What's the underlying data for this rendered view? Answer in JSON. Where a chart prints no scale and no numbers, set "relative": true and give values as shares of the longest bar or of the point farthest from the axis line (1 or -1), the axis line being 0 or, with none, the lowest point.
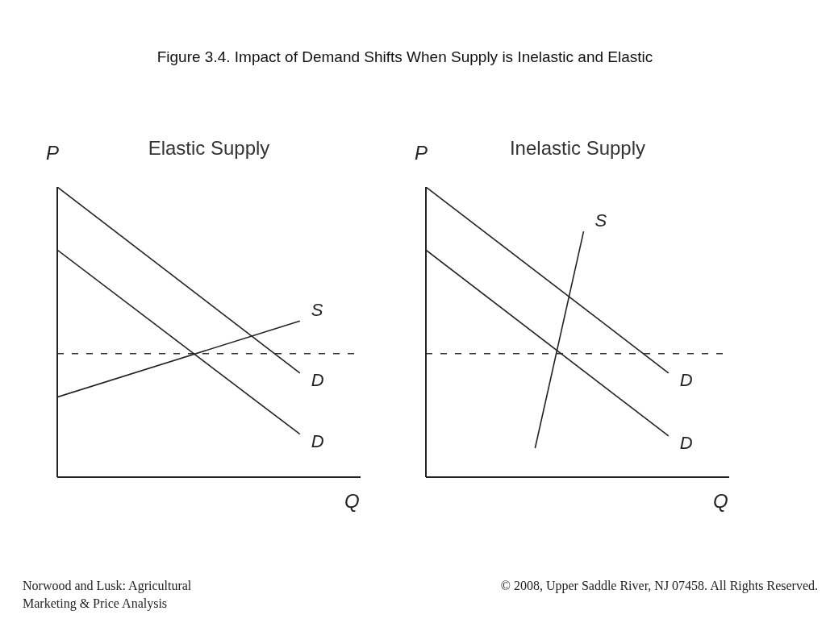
{
  "chart_data": [
    {
      "type": "line",
      "title": "Figure 3.4.  Impact of Demand Shifts When Supply is Inelastic and Elastic",
      "subtitle": "Elastic Supply",
      "xlabel": "Q",
      "ylabel": "P",
      "relative": true,
      "categories": [
        null,
        null,
        null,
        null,
        null,
        null,
        null,
        null,
        null,
        null,
        null,
        null,
        null,
        null,
        null,
        null,
        null,
        null,
        null,
        null,
        null,
        null,
        null,
        null,
        null,
        null
      ],
      "series": [
        {
          "name": "D",
          "color": "#222222",
          "values": [
            1.0,
            null,
            null,
            null,
            null,
            null,
            null,
            null,
            null,
            null,
            null,
            null,
            null,
            null,
            null,
            null,
            null,
            null,
            null,
            null,
            0.359,
            null,
            null,
            null,
            null,
            null
          ]
        },
        {
          "name": "D",
          "color": "#222222",
          "values": [
            0.783,
            null,
            null,
            null,
            null,
            null,
            null,
            null,
            null,
            null,
            null,
            null,
            null,
            null,
            null,
            null,
            null,
            null,
            null,
            null,
            0.148,
            null,
            null,
            null,
            null,
            null
          ]
        },
        {
          "name": "S",
          "color": "#222222",
          "values": [
            0.276,
            null,
            null,
            null,
            null,
            null,
            null,
            null,
            null,
            null,
            null,
            null,
            null,
            null,
            null,
            null,
            null,
            null,
            null,
            null,
            0.538,
            null,
            null,
            null,
            null,
            null
          ]
        }
      ],
      "ref_lines": [
        {
          "axis": "y",
          "value": 0.426,
          "color": "#333333",
          "line_style": "dashed"
        }
      ],
      "line_style": "solid",
      "marker": "none",
      "grid": false,
      "legend": false,
      "annotations": [
        "Norwood and Lusk: Agricultural Marketing & Price Analysis"
      ]
    },
    {
      "type": "line",
      "subtitle": "Inelastic Supply",
      "xlabel": "Q",
      "ylabel": "P",
      "relative": true,
      "categories": [
        null,
        null,
        null,
        null,
        null,
        null,
        null,
        null,
        null,
        null,
        null,
        null,
        null,
        null,
        null,
        null,
        null,
        null,
        null,
        null,
        null,
        null,
        null,
        null,
        null,
        null
      ],
      "series": [
        {
          "name": "D",
          "color": "#222222",
          "values": [
            1.0,
            null,
            null,
            null,
            null,
            null,
            null,
            null,
            null,
            null,
            null,
            null,
            null,
            null,
            null,
            null,
            null,
            null,
            null,
            null,
            0.359,
            null,
            null,
            null,
            null,
            null
          ]
        },
        {
          "name": "D",
          "color": "#222222",
          "values": [
            0.783,
            null,
            null,
            null,
            null,
            null,
            null,
            null,
            null,
            null,
            null,
            null,
            null,
            null,
            null,
            null,
            null,
            null,
            null,
            null,
            0.142,
            null,
            null,
            null,
            null,
            null
          ]
        },
        {
          "name": "S",
          "color": "#222222",
          "values": [
            null,
            null,
            null,
            null,
            null,
            null,
            null,
            null,
            null,
            0.1,
            null,
            null,
            null,
            0.847,
            null,
            null,
            null,
            null,
            null,
            null,
            null,
            null,
            null,
            null,
            null,
            null
          ]
        }
      ],
      "ref_lines": [
        {
          "axis": "y",
          "value": 0.426,
          "color": "#333333",
          "line_style": "dashed"
        }
      ],
      "line_style": "solid",
      "marker": "none",
      "grid": false,
      "legend": false,
      "annotations": [
        "© 2008, Upper Saddle River, NJ 07458. All Rights Reserved."
      ]
    }
  ]
}
